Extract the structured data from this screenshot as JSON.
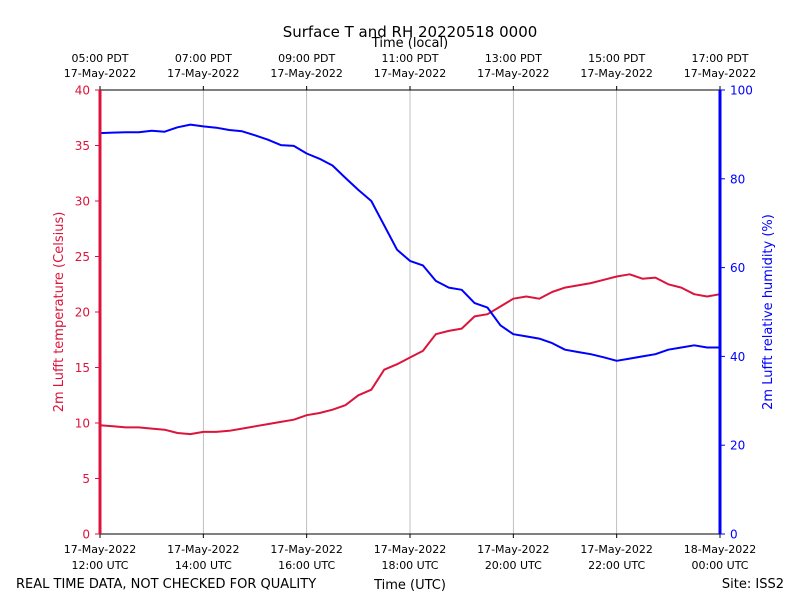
{
  "chart_data": {
    "type": "line",
    "title": "Surface T and RH 20220518 0000",
    "top_axis_title": "Time (local)",
    "xlabel": "Time (UTC)",
    "ylabel_left": "2m Lufft temperature (Celsius)",
    "ylabel_right": "2m Lufft relative humidity (%)",
    "x_hours_utc_from_start_range": [
      0,
      12
    ],
    "ylim_left": [
      0,
      40
    ],
    "ylim_right": [
      0,
      100
    ],
    "left_ticks": [
      "0",
      "5",
      "10",
      "15",
      "20",
      "25",
      "30",
      "35",
      "40"
    ],
    "right_ticks": [
      "0",
      "20",
      "40",
      "60",
      "80",
      "100"
    ],
    "bottom_ticks": [
      {
        "date": "17-May-2022",
        "time": "12:00 UTC",
        "hour": 0
      },
      {
        "date": "17-May-2022",
        "time": "14:00 UTC",
        "hour": 2
      },
      {
        "date": "17-May-2022",
        "time": "16:00 UTC",
        "hour": 4
      },
      {
        "date": "17-May-2022",
        "time": "18:00 UTC",
        "hour": 6
      },
      {
        "date": "17-May-2022",
        "time": "20:00 UTC",
        "hour": 8
      },
      {
        "date": "17-May-2022",
        "time": "22:00 UTC",
        "hour": 10
      },
      {
        "date": "18-May-2022",
        "time": "00:00 UTC",
        "hour": 12
      }
    ],
    "top_ticks": [
      {
        "time": "05:00 PDT",
        "date": "17-May-2022",
        "hour": 0
      },
      {
        "time": "07:00 PDT",
        "date": "17-May-2022",
        "hour": 2
      },
      {
        "time": "09:00 PDT",
        "date": "17-May-2022",
        "hour": 4
      },
      {
        "time": "11:00 PDT",
        "date": "17-May-2022",
        "hour": 6
      },
      {
        "time": "13:00 PDT",
        "date": "17-May-2022",
        "hour": 8
      },
      {
        "time": "15:00 PDT",
        "date": "17-May-2022",
        "hour": 10
      },
      {
        "time": "17:00 PDT",
        "date": "17-May-2022",
        "hour": 12
      }
    ],
    "grid": "vertical",
    "series": [
      {
        "name": "temperature",
        "axis": "left",
        "color": "#dc143c",
        "x": [
          0,
          0.25,
          0.5,
          0.75,
          1.0,
          1.25,
          1.5,
          1.75,
          2.0,
          2.25,
          2.5,
          2.75,
          3.0,
          3.25,
          3.5,
          3.75,
          4.0,
          4.25,
          4.5,
          4.75,
          5.0,
          5.25,
          5.5,
          5.75,
          6.0,
          6.25,
          6.5,
          6.75,
          7.0,
          7.25,
          7.5,
          7.75,
          8.0,
          8.25,
          8.5,
          8.75,
          9.0,
          9.25,
          9.5,
          9.75,
          10.0,
          10.25,
          10.5,
          10.75,
          11.0,
          11.25,
          11.5,
          11.75,
          12.0
        ],
        "values": [
          9.8,
          9.7,
          9.6,
          9.6,
          9.5,
          9.4,
          9.1,
          9.0,
          9.2,
          9.2,
          9.3,
          9.5,
          9.7,
          9.9,
          10.1,
          10.3,
          10.7,
          10.9,
          11.2,
          11.6,
          12.5,
          13.0,
          14.8,
          15.3,
          15.9,
          16.5,
          18.0,
          18.3,
          18.5,
          19.6,
          19.8,
          20.5,
          21.2,
          21.4,
          21.2,
          21.8,
          22.2,
          22.4,
          22.6,
          22.9,
          23.2,
          23.4,
          23.0,
          23.1,
          22.5,
          22.2,
          21.6,
          21.4,
          21.6
        ]
      },
      {
        "name": "relative humidity",
        "axis": "right",
        "color": "#0000ff",
        "x": [
          0,
          0.25,
          0.5,
          0.75,
          1.0,
          1.25,
          1.5,
          1.75,
          2.0,
          2.25,
          2.5,
          2.75,
          3.0,
          3.25,
          3.5,
          3.75,
          4.0,
          4.25,
          4.5,
          4.75,
          5.0,
          5.25,
          5.5,
          5.75,
          6.0,
          6.25,
          6.5,
          6.75,
          7.0,
          7.25,
          7.5,
          7.75,
          8.0,
          8.25,
          8.5,
          8.75,
          9.0,
          9.25,
          9.5,
          9.75,
          10.0,
          10.25,
          10.5,
          10.75,
          11.0,
          11.25,
          11.5,
          11.75,
          12.0
        ],
        "values": [
          90.3,
          90.4,
          90.5,
          90.5,
          90.8,
          90.6,
          91.6,
          92.2,
          91.8,
          91.5,
          91.0,
          90.7,
          89.8,
          88.8,
          87.6,
          87.4,
          85.7,
          84.5,
          83.0,
          80.2,
          77.5,
          75.0,
          69.5,
          64.0,
          61.5,
          60.5,
          57.0,
          55.5,
          55.0,
          52.0,
          51.0,
          47.0,
          45.0,
          44.5,
          44.0,
          43.0,
          41.5,
          41.0,
          40.5,
          39.8,
          39.0,
          39.5,
          40.0,
          40.5,
          41.5,
          42.0,
          42.5,
          42.0,
          42.0
        ]
      }
    ]
  },
  "footer": {
    "left_text": "REAL TIME DATA, NOT CHECKED FOR QUALITY",
    "right_text": "Site: ISS2"
  }
}
